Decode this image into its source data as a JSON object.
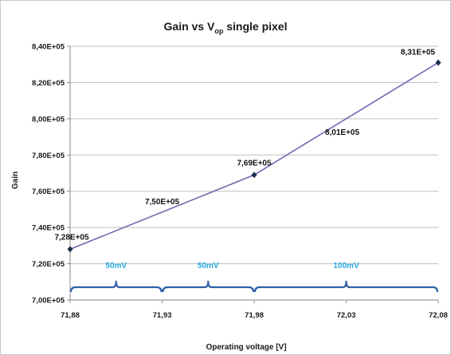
{
  "chart_data": {
    "type": "line",
    "title": "Gain vs V",
    "title_subscript": "op",
    "title_suffix": " single pixel",
    "xlabel": "Operating voltage [V]",
    "ylabel": "Gain",
    "xlim": [
      71.88,
      72.08
    ],
    "ylim": [
      700000,
      840000
    ],
    "x_ticks": [
      71.88,
      71.93,
      71.98,
      72.03,
      72.08
    ],
    "x_tick_labels": [
      "71,88",
      "71,93",
      "71,98",
      "72,03",
      "72,08"
    ],
    "y_ticks": [
      700000,
      720000,
      740000,
      760000,
      780000,
      800000,
      820000,
      840000
    ],
    "y_tick_labels": [
      "7,00E+05",
      "7,20E+05",
      "7,40E+05",
      "7,60E+05",
      "7,80E+05",
      "8,00E+05",
      "8,20E+05",
      "8,40E+05"
    ],
    "series": [
      {
        "x": [
          71.88,
          71.98,
          72.08
        ],
        "y": [
          728000,
          769000,
          831000
        ],
        "line_color": "#6b6bb3",
        "marker_color": "#1f2d4d"
      }
    ],
    "annotations": [
      {
        "text": "7,28E+05",
        "x": 71.88,
        "y": 728000
      },
      {
        "text": "7,69E+05",
        "x": 71.98,
        "y": 769000
      },
      {
        "text": "8,31E+05",
        "x": 72.08,
        "y": 831000
      },
      {
        "text": "7,50E+05",
        "x": 71.93,
        "y": 748500
      },
      {
        "text": "8,01E+05",
        "x": 72.03,
        "y": 800000
      }
    ],
    "brackets": [
      {
        "from": 71.88,
        "to": 71.93,
        "label": "50mV"
      },
      {
        "from": 71.93,
        "to": 71.98,
        "label": "50mV"
      },
      {
        "from": 71.98,
        "to": 72.08,
        "label": "100mV"
      }
    ],
    "bracket_color": "#2f5fa8",
    "bracket_label_color": "#29a9e0",
    "grid": "horizontal",
    "legend": "none"
  }
}
